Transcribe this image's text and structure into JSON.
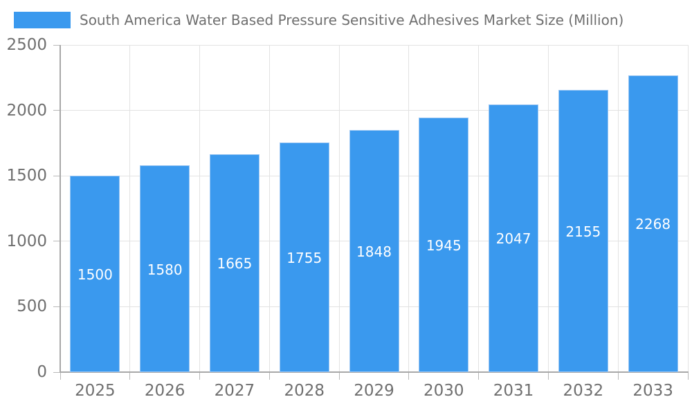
{
  "legend": {
    "series_label": "South America Water Based Pressure Sensitive Adhesives Market Size (Million)"
  },
  "chart_data": {
    "type": "bar",
    "title": "South America Water Based Pressure Sensitive Adhesives Market Size (Million)",
    "categories": [
      "2025",
      "2026",
      "2027",
      "2028",
      "2029",
      "2030",
      "2031",
      "2032",
      "2033"
    ],
    "values": [
      1500,
      1580,
      1665,
      1755,
      1848,
      1945,
      2047,
      2155,
      2268
    ],
    "xlabel": "",
    "ylabel": "",
    "ylim": [
      0,
      2500
    ],
    "y_ticks": [
      0,
      500,
      1000,
      1500,
      2000,
      2500
    ],
    "grid": true,
    "legend_position": "top-left",
    "bar_labels_shown_inside_bars": true
  },
  "colors": {
    "bar_fill": "#3a99ee",
    "bar_border": "#9cc7f3",
    "grid_line": "#e2e2e2",
    "axis_line": "#a8a8a8",
    "tick_mark": "#b8b8b8",
    "axis_text": "#6f6f6f",
    "bar_label_text": "#ffffff",
    "background": "#ffffff"
  }
}
